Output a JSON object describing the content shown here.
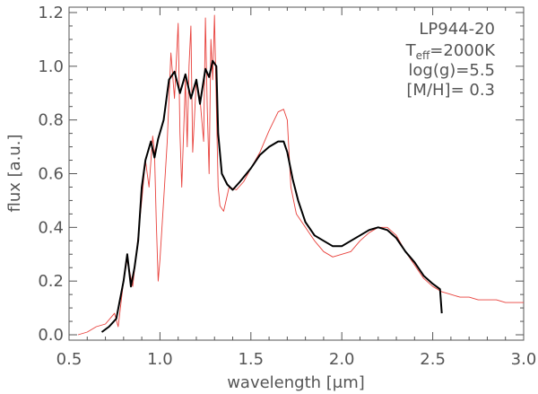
{
  "chart_data": {
    "type": "line",
    "xlabel": "wavelength [μm]",
    "ylabel": "flux [a.u.]",
    "xlim": [
      0.5,
      3.0
    ],
    "ylim": [
      -0.02,
      1.22
    ],
    "x_ticks": [
      0.5,
      1.0,
      1.5,
      2.0,
      2.5,
      3.0
    ],
    "y_ticks": [
      0.0,
      0.2,
      0.4,
      0.6,
      0.8,
      1.0,
      1.2
    ],
    "x_tick_labels": [
      "0.5",
      "1.0",
      "1.5",
      "2.0",
      "2.5",
      "3.0"
    ],
    "y_tick_labels": [
      "0.0",
      "0.2",
      "0.4",
      "0.6",
      "0.8",
      "1.0",
      "1.2"
    ],
    "grid": false,
    "colors": {
      "axis": "#555555",
      "observed": "#e8413c",
      "model": "#000000"
    },
    "annotations": {
      "object": "LP944-20",
      "teff_prefix": "T",
      "teff_sub": "eff",
      "teff_suffix": "=2000K",
      "logg": "log(g)=5.5",
      "metallicity": "[M/H]= 0.3"
    },
    "series": [
      {
        "key": "observed",
        "color": "#e8413c",
        "points": [
          [
            0.55,
            0.0
          ],
          [
            0.6,
            0.01
          ],
          [
            0.65,
            0.03
          ],
          [
            0.7,
            0.04
          ],
          [
            0.75,
            0.08
          ],
          [
            0.77,
            0.03
          ],
          [
            0.8,
            0.2
          ],
          [
            0.82,
            0.28
          ],
          [
            0.85,
            0.18
          ],
          [
            0.87,
            0.3
          ],
          [
            0.9,
            0.5
          ],
          [
            0.92,
            0.65
          ],
          [
            0.94,
            0.55
          ],
          [
            0.96,
            0.74
          ],
          [
            0.97,
            0.68
          ],
          [
            0.98,
            0.42
          ],
          [
            0.99,
            0.2
          ],
          [
            1.0,
            0.28
          ],
          [
            1.02,
            0.5
          ],
          [
            1.04,
            0.72
          ],
          [
            1.06,
            1.05
          ],
          [
            1.08,
            0.88
          ],
          [
            1.1,
            1.16
          ],
          [
            1.11,
            0.75
          ],
          [
            1.12,
            0.55
          ],
          [
            1.14,
            0.95
          ],
          [
            1.15,
            0.7
          ],
          [
            1.16,
            1.0
          ],
          [
            1.17,
            1.15
          ],
          [
            1.18,
            0.68
          ],
          [
            1.2,
            0.95
          ],
          [
            1.22,
            0.88
          ],
          [
            1.24,
            0.72
          ],
          [
            1.25,
            1.18
          ],
          [
            1.26,
            0.85
          ],
          [
            1.27,
            0.6
          ],
          [
            1.28,
            1.1
          ],
          [
            1.29,
            0.95
          ],
          [
            1.3,
            1.19
          ],
          [
            1.31,
            0.85
          ],
          [
            1.32,
            0.55
          ],
          [
            1.33,
            0.48
          ],
          [
            1.35,
            0.46
          ],
          [
            1.38,
            0.55
          ],
          [
            1.42,
            0.54
          ],
          [
            1.46,
            0.57
          ],
          [
            1.5,
            0.62
          ],
          [
            1.55,
            0.68
          ],
          [
            1.6,
            0.76
          ],
          [
            1.65,
            0.83
          ],
          [
            1.68,
            0.84
          ],
          [
            1.7,
            0.8
          ],
          [
            1.72,
            0.55
          ],
          [
            1.75,
            0.45
          ],
          [
            1.8,
            0.4
          ],
          [
            1.85,
            0.35
          ],
          [
            1.9,
            0.31
          ],
          [
            1.95,
            0.29
          ],
          [
            2.0,
            0.3
          ],
          [
            2.05,
            0.31
          ],
          [
            2.1,
            0.35
          ],
          [
            2.15,
            0.38
          ],
          [
            2.2,
            0.4
          ],
          [
            2.25,
            0.4
          ],
          [
            2.3,
            0.37
          ],
          [
            2.35,
            0.31
          ],
          [
            2.4,
            0.26
          ],
          [
            2.45,
            0.21
          ],
          [
            2.5,
            0.18
          ],
          [
            2.55,
            0.16
          ],
          [
            2.6,
            0.15
          ],
          [
            2.65,
            0.14
          ],
          [
            2.7,
            0.14
          ],
          [
            2.75,
            0.13
          ],
          [
            2.8,
            0.13
          ],
          [
            2.85,
            0.13
          ],
          [
            2.9,
            0.12
          ],
          [
            2.95,
            0.12
          ],
          [
            3.0,
            0.12
          ]
        ]
      },
      {
        "key": "model",
        "color": "#000000",
        "points": [
          [
            0.68,
            0.01
          ],
          [
            0.72,
            0.03
          ],
          [
            0.76,
            0.06
          ],
          [
            0.8,
            0.2
          ],
          [
            0.82,
            0.3
          ],
          [
            0.84,
            0.18
          ],
          [
            0.86,
            0.25
          ],
          [
            0.88,
            0.35
          ],
          [
            0.9,
            0.55
          ],
          [
            0.92,
            0.65
          ],
          [
            0.95,
            0.72
          ],
          [
            0.97,
            0.66
          ],
          [
            0.99,
            0.73
          ],
          [
            1.02,
            0.8
          ],
          [
            1.05,
            0.95
          ],
          [
            1.08,
            0.98
          ],
          [
            1.11,
            0.9
          ],
          [
            1.14,
            0.97
          ],
          [
            1.17,
            0.88
          ],
          [
            1.2,
            0.95
          ],
          [
            1.22,
            0.86
          ],
          [
            1.25,
            0.99
          ],
          [
            1.27,
            0.96
          ],
          [
            1.29,
            1.02
          ],
          [
            1.31,
            1.0
          ],
          [
            1.32,
            0.75
          ],
          [
            1.34,
            0.6
          ],
          [
            1.37,
            0.56
          ],
          [
            1.4,
            0.54
          ],
          [
            1.44,
            0.57
          ],
          [
            1.5,
            0.62
          ],
          [
            1.55,
            0.67
          ],
          [
            1.6,
            0.7
          ],
          [
            1.65,
            0.72
          ],
          [
            1.68,
            0.72
          ],
          [
            1.7,
            0.68
          ],
          [
            1.73,
            0.58
          ],
          [
            1.76,
            0.5
          ],
          [
            1.8,
            0.42
          ],
          [
            1.85,
            0.37
          ],
          [
            1.9,
            0.35
          ],
          [
            1.95,
            0.33
          ],
          [
            2.0,
            0.33
          ],
          [
            2.05,
            0.35
          ],
          [
            2.1,
            0.37
          ],
          [
            2.15,
            0.39
          ],
          [
            2.2,
            0.4
          ],
          [
            2.25,
            0.39
          ],
          [
            2.3,
            0.36
          ],
          [
            2.35,
            0.31
          ],
          [
            2.4,
            0.27
          ],
          [
            2.45,
            0.22
          ],
          [
            2.5,
            0.19
          ],
          [
            2.54,
            0.17
          ],
          [
            2.55,
            0.08
          ]
        ]
      }
    ]
  }
}
